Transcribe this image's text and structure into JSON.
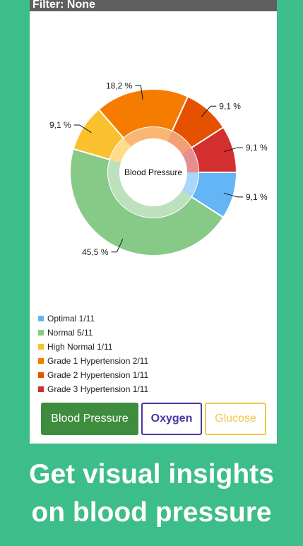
{
  "filter_label": "Filter: None",
  "chart_data": {
    "type": "pie",
    "title": "Blood Pressure",
    "categories": [
      "Optimal",
      "Normal",
      "High Normal",
      "Grade 1 Hypertension",
      "Grade 2 Hypertension",
      "Grade 3 Hypertension"
    ],
    "values": [
      1,
      5,
      1,
      2,
      1,
      1
    ],
    "value_labels": [
      "9,1 %",
      "45,5 %",
      "9,1 %",
      "18,2 %",
      "9,1 %",
      "9,1 %"
    ],
    "colors": [
      "#64b5f6",
      "#87c987",
      "#fbc02d",
      "#f57c00",
      "#e65100",
      "#d32f2f"
    ]
  },
  "legend": [
    {
      "label": "Optimal 1/11",
      "color": "#64b5f6"
    },
    {
      "label": "Normal 5/11",
      "color": "#87c987"
    },
    {
      "label": "High Normal 1/11",
      "color": "#fbc02d"
    },
    {
      "label": "Grade 1 Hypertension 2/11",
      "color": "#f57c00"
    },
    {
      "label": "Grade 2 Hypertension 1/11",
      "color": "#e65100"
    },
    {
      "label": "Grade 3 Hypertension 1/11",
      "color": "#d32f2f"
    }
  ],
  "buttons": {
    "blood_pressure": "Blood Pressure",
    "oxygen": "Oxygen",
    "glucose": "Glucose"
  },
  "caption": {
    "line1": "Get visual insights",
    "line2": "on blood pressure"
  }
}
